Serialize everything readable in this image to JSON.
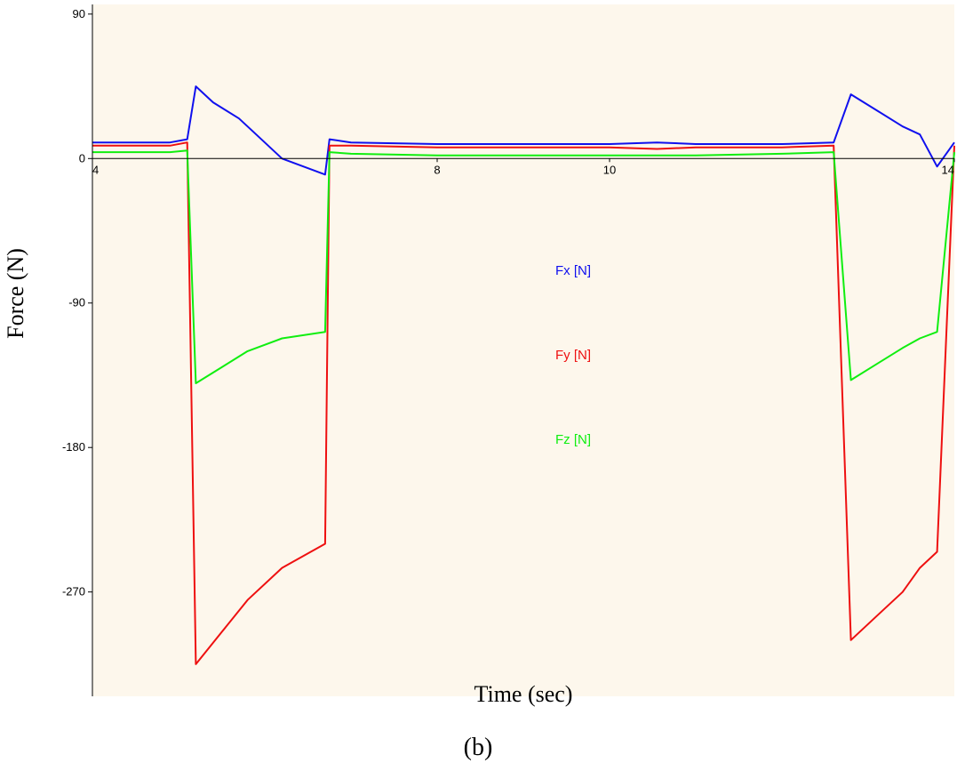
{
  "chart_data": {
    "type": "line",
    "xlabel": "Time (sec)",
    "ylabel": "Force (N)",
    "xlim": [
      4,
      14
    ],
    "ylim": [
      -335,
      96
    ],
    "x_ticks": [
      {
        "value": 4,
        "label": "4"
      },
      {
        "value": 8,
        "label": "8"
      },
      {
        "value": 10,
        "label": "10"
      },
      {
        "value": 14,
        "label": "14"
      }
    ],
    "y_ticks": [
      {
        "value": 90,
        "label": "90"
      },
      {
        "value": 0,
        "label": "0"
      },
      {
        "value": -90,
        "label": "-90"
      },
      {
        "value": -180,
        "label": "-180"
      },
      {
        "value": -270,
        "label": "-270"
      }
    ],
    "grid": false,
    "legend_position": "center",
    "plot_background": "#fdf7ec",
    "series": [
      {
        "name": "Fx [N]",
        "color": "#1010ee",
        "x": [
          4.0,
          4.9,
          5.1,
          5.2,
          5.4,
          5.7,
          5.9,
          6.2,
          6.7,
          6.75,
          7.0,
          8.0,
          9.0,
          10.0,
          10.55,
          11.0,
          12.0,
          12.6,
          12.8,
          13.1,
          13.4,
          13.6,
          13.8,
          14.0
        ],
        "values": [
          10,
          10,
          12,
          45,
          35,
          25,
          15,
          0,
          -10,
          12,
          10,
          9,
          9,
          9,
          10,
          9,
          9,
          10,
          40,
          30,
          20,
          15,
          -5,
          10
        ]
      },
      {
        "name": "Fy [N]",
        "color": "#ee1010",
        "x": [
          4.0,
          4.9,
          5.1,
          5.2,
          5.5,
          5.8,
          6.2,
          6.7,
          6.75,
          7.0,
          8.0,
          9.0,
          10.0,
          10.55,
          11.0,
          12.0,
          12.6,
          12.8,
          13.1,
          13.4,
          13.6,
          13.8,
          14.0
        ],
        "values": [
          8,
          8,
          10,
          -315,
          -295,
          -275,
          -255,
          -240,
          8,
          8,
          7,
          7,
          7,
          6,
          7,
          7,
          8,
          -300,
          -285,
          -270,
          -255,
          -245,
          8
        ]
      },
      {
        "name": "Fz [N]",
        "color": "#10ee10",
        "x": [
          4.0,
          4.9,
          5.1,
          5.2,
          5.5,
          5.8,
          6.2,
          6.7,
          6.75,
          7.0,
          8.0,
          9.0,
          10.0,
          10.55,
          11.0,
          12.0,
          12.6,
          12.8,
          13.1,
          13.4,
          13.6,
          13.8,
          14.0
        ],
        "values": [
          4,
          4,
          5,
          -140,
          -130,
          -120,
          -112,
          -108,
          4,
          3,
          2,
          2,
          2,
          2,
          2,
          3,
          4,
          -138,
          -128,
          -118,
          -112,
          -108,
          4
        ]
      }
    ]
  },
  "caption": "(b)"
}
